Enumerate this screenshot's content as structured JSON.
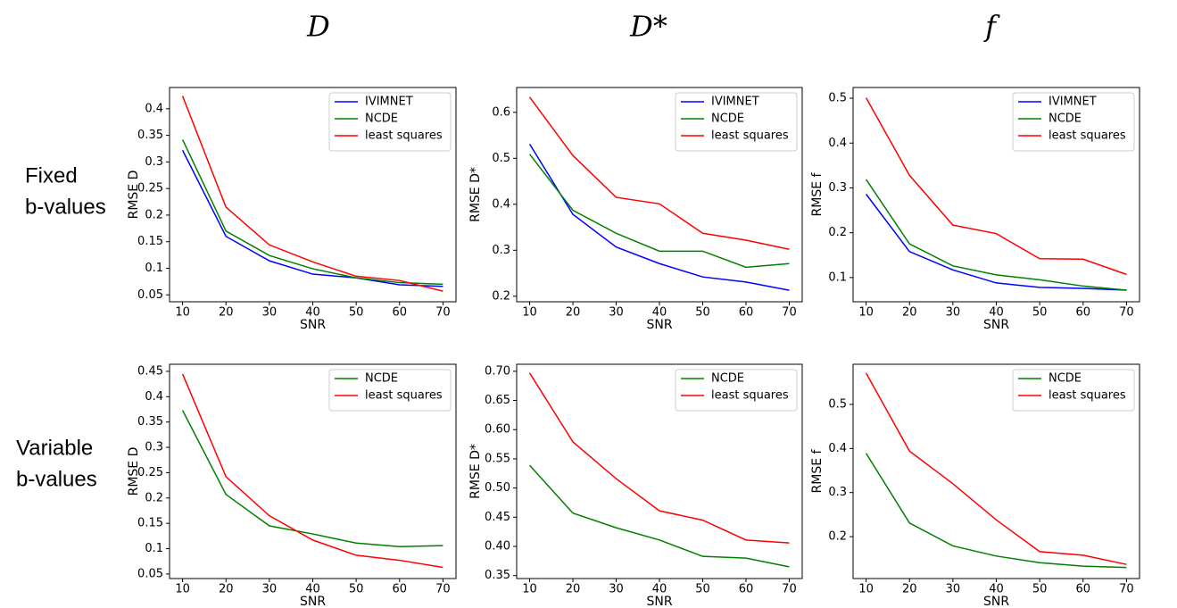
{
  "column_titles": [
    "D",
    "D*",
    "f"
  ],
  "row_labels": [
    [
      "Fixed",
      "b-values"
    ],
    [
      "Variable",
      "b-values"
    ]
  ],
  "chart_data": [
    {
      "type": "line",
      "xlabel": "SNR",
      "ylabel": "RMSE D",
      "x": [
        10,
        20,
        30,
        40,
        50,
        60,
        70
      ],
      "xlim": [
        7,
        73
      ],
      "xticks": [
        10,
        20,
        30,
        40,
        50,
        60,
        70
      ],
      "ylim": [
        0.037,
        0.44
      ],
      "yticks": [
        0.05,
        0.1,
        0.15,
        0.2,
        0.25,
        0.3,
        0.35,
        0.4
      ],
      "grid": false,
      "legend": "upper right",
      "series": [
        {
          "name": "IVIMNET",
          "color": "#0000ff",
          "values": [
            0.322,
            0.16,
            0.114,
            0.089,
            0.082,
            0.069,
            0.066
          ]
        },
        {
          "name": "NCDE",
          "color": "#008000",
          "values": [
            0.342,
            0.17,
            0.124,
            0.099,
            0.082,
            0.073,
            0.07
          ]
        },
        {
          "name": "least squares",
          "color": "#ff0000",
          "values": [
            0.424,
            0.215,
            0.144,
            0.112,
            0.085,
            0.077,
            0.057
          ]
        }
      ]
    },
    {
      "type": "line",
      "xlabel": "SNR",
      "ylabel": "RMSE D*",
      "x": [
        10,
        20,
        30,
        40,
        50,
        60,
        70
      ],
      "xlim": [
        7,
        73
      ],
      "xticks": [
        10,
        20,
        30,
        40,
        50,
        60,
        70
      ],
      "ylim": [
        0.188,
        0.654
      ],
      "yticks": [
        0.2,
        0.3,
        0.4,
        0.5,
        0.6
      ],
      "grid": false,
      "legend": "upper right",
      "series": [
        {
          "name": "IVIMNET",
          "color": "#0000ff",
          "values": [
            0.531,
            0.378,
            0.307,
            0.271,
            0.242,
            0.231,
            0.213
          ]
        },
        {
          "name": "NCDE",
          "color": "#008000",
          "values": [
            0.509,
            0.387,
            0.337,
            0.298,
            0.298,
            0.263,
            0.271
          ]
        },
        {
          "name": "least squares",
          "color": "#ff0000",
          "values": [
            0.633,
            0.506,
            0.415,
            0.401,
            0.337,
            0.322,
            0.302
          ]
        }
      ]
    },
    {
      "type": "line",
      "xlabel": "SNR",
      "ylabel": "RMSE f",
      "x": [
        10,
        20,
        30,
        40,
        50,
        60,
        70
      ],
      "xlim": [
        7,
        73
      ],
      "xticks": [
        10,
        20,
        30,
        40,
        50,
        60,
        70
      ],
      "ylim": [
        0.046,
        0.524
      ],
      "yticks": [
        0.1,
        0.2,
        0.3,
        0.4,
        0.5
      ],
      "grid": false,
      "legend": "upper right",
      "series": [
        {
          "name": "IVIMNET",
          "color": "#0000ff",
          "values": [
            0.286,
            0.158,
            0.117,
            0.088,
            0.078,
            0.076,
            0.072
          ]
        },
        {
          "name": "NCDE",
          "color": "#008000",
          "values": [
            0.319,
            0.175,
            0.126,
            0.106,
            0.095,
            0.081,
            0.072
          ]
        },
        {
          "name": "least squares",
          "color": "#ff0000",
          "values": [
            0.501,
            0.328,
            0.217,
            0.198,
            0.142,
            0.141,
            0.107
          ]
        }
      ]
    },
    {
      "type": "line",
      "xlabel": "SNR",
      "ylabel": "RMSE D",
      "x": [
        10,
        20,
        30,
        40,
        50,
        60,
        70
      ],
      "xlim": [
        7,
        73
      ],
      "xticks": [
        10,
        20,
        30,
        40,
        50,
        60,
        70
      ],
      "ylim": [
        0.041,
        0.464
      ],
      "yticks": [
        0.05,
        0.1,
        0.15,
        0.2,
        0.25,
        0.3,
        0.35,
        0.4,
        0.45
      ],
      "grid": false,
      "legend": "upper right",
      "series": [
        {
          "name": "NCDE",
          "color": "#008000",
          "values": [
            0.373,
            0.207,
            0.145,
            0.129,
            0.111,
            0.104,
            0.106
          ]
        },
        {
          "name": "least squares",
          "color": "#ff0000",
          "values": [
            0.445,
            0.242,
            0.165,
            0.117,
            0.087,
            0.077,
            0.063
          ]
        }
      ]
    },
    {
      "type": "line",
      "xlabel": "SNR",
      "ylabel": "RMSE D*",
      "x": [
        10,
        20,
        30,
        40,
        50,
        60,
        70
      ],
      "xlim": [
        7,
        73
      ],
      "xticks": [
        10,
        20,
        30,
        40,
        50,
        60,
        70
      ],
      "ylim": [
        0.345,
        0.712
      ],
      "yticks": [
        {
          "value": 0.35,
          "label": "0.35"
        },
        {
          "value": 0.4,
          "label": "0.40"
        },
        {
          "value": 0.45,
          "label": "0.45"
        },
        {
          "value": 0.5,
          "label": "0.50"
        },
        {
          "value": 0.55,
          "label": "0.55"
        },
        {
          "value": 0.6,
          "label": "0.60"
        },
        {
          "value": 0.65,
          "label": "0.65"
        },
        {
          "value": 0.7,
          "label": "0.70"
        }
      ],
      "grid": false,
      "legend": "upper right",
      "series": [
        {
          "name": "NCDE",
          "color": "#008000",
          "values": [
            0.539,
            0.457,
            0.432,
            0.411,
            0.383,
            0.38,
            0.365
          ]
        },
        {
          "name": "least squares",
          "color": "#ff0000",
          "values": [
            0.697,
            0.579,
            0.516,
            0.461,
            0.445,
            0.411,
            0.406
          ]
        }
      ]
    },
    {
      "type": "line",
      "xlabel": "SNR",
      "ylabel": "RMSE f",
      "x": [
        10,
        20,
        30,
        40,
        50,
        60,
        70
      ],
      "xlim": [
        7,
        73
      ],
      "xticks": [
        10,
        20,
        30,
        40,
        50,
        60,
        70
      ],
      "ylim": [
        0.105,
        0.591
      ],
      "yticks": [
        0.2,
        0.3,
        0.4,
        0.5
      ],
      "grid": false,
      "legend": "upper right",
      "series": [
        {
          "name": "NCDE",
          "color": "#008000",
          "values": [
            0.389,
            0.231,
            0.179,
            0.156,
            0.141,
            0.133,
            0.13
          ]
        },
        {
          "name": "least squares",
          "color": "#ff0000",
          "values": [
            0.571,
            0.394,
            0.32,
            0.238,
            0.166,
            0.158,
            0.137
          ]
        }
      ]
    }
  ]
}
